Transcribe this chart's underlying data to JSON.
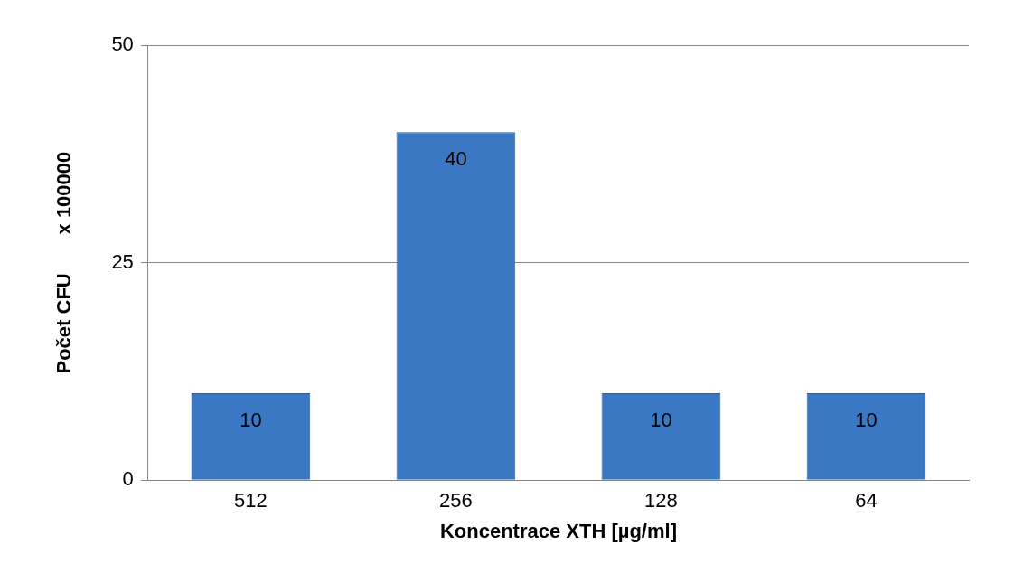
{
  "chart_data": {
    "type": "bar",
    "xlabel": "Koncentrace XTH [µg/ml]",
    "ylabel": "Počet CFU       x 100000",
    "categories": [
      "512",
      "256",
      "128",
      "64"
    ],
    "values": [
      10,
      40,
      10,
      10
    ],
    "color": "#3a78c3",
    "ylim": [
      0,
      50
    ],
    "yticks": [
      0,
      25,
      50
    ],
    "grid": "y",
    "data_labels": true,
    "legend": false
  }
}
